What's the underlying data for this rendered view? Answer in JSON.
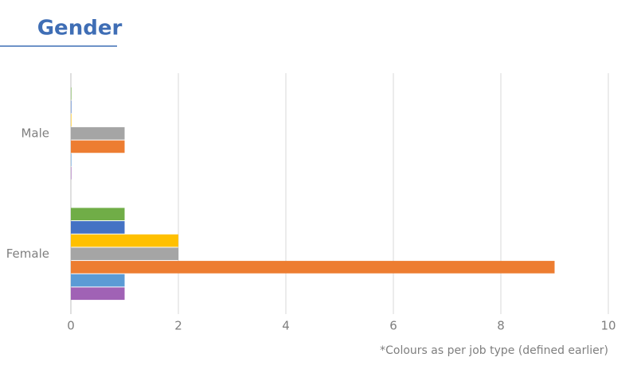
{
  "chart_data": {
    "type": "hbar",
    "title": "Gender",
    "categories": [
      "Male",
      "Female"
    ],
    "series": [
      {
        "color": "#70ad47",
        "values": [
          0,
          1
        ]
      },
      {
        "color": "#4472c4",
        "values": [
          0,
          1
        ]
      },
      {
        "color": "#ffc000",
        "values": [
          0,
          2
        ]
      },
      {
        "color": "#a5a5a5",
        "values": [
          1,
          2
        ]
      },
      {
        "color": "#ed7d31",
        "values": [
          1,
          9
        ]
      },
      {
        "color": "#5b9bd5",
        "values": [
          0,
          1
        ]
      },
      {
        "color": "#a062b5",
        "values": [
          0,
          1
        ]
      }
    ],
    "xlim": [
      0,
      10
    ],
    "xticks": [
      0,
      2,
      4,
      6,
      8,
      10
    ],
    "grid": true,
    "note": "*Colours as per job type (defined earlier)"
  }
}
